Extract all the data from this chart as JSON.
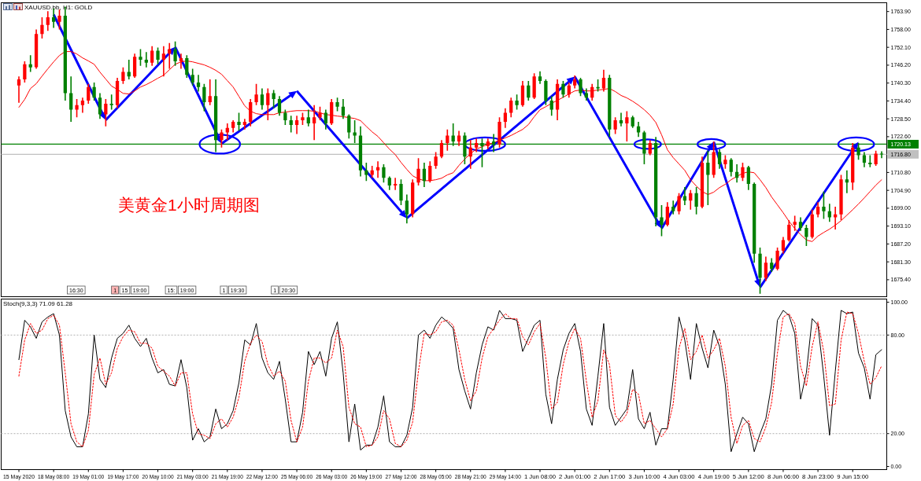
{
  "chart_data": [
    {
      "type": "candlestick",
      "title": "XAUUSD.bb, H1: GOLD",
      "annotations": [
        "美黄金1小时周期图",
        "16:30",
        "1",
        "15",
        "19:00",
        "15:",
        "19:00",
        "1",
        "19:30",
        "1",
        "20:30"
      ],
      "categories": [
        null,
        null,
        null,
        null,
        null,
        null,
        null,
        null,
        null,
        null,
        null,
        null,
        null,
        null,
        null,
        null,
        null,
        null,
        null,
        null,
        null,
        null,
        null,
        null,
        null,
        null,
        null,
        null,
        null,
        null,
        null,
        null,
        null,
        null,
        null,
        null,
        null,
        null,
        null,
        null,
        null,
        null,
        null,
        null,
        null,
        null,
        null,
        null,
        null,
        null,
        null,
        null,
        null,
        null,
        null,
        null,
        null,
        null,
        null,
        null,
        null,
        null,
        null,
        null,
        null,
        null,
        null,
        null,
        null,
        null,
        null,
        null,
        null,
        null,
        null,
        null,
        null,
        null,
        null,
        null,
        null,
        null,
        null,
        null,
        null,
        null,
        null,
        null,
        null,
        null,
        null,
        null,
        null,
        null,
        null,
        null,
        null,
        null,
        null,
        null,
        null,
        null,
        null,
        null,
        null,
        null,
        null,
        null,
        null,
        null,
        null,
        null,
        null,
        null,
        null,
        null,
        null,
        null,
        null,
        null,
        null,
        null,
        null,
        null,
        null,
        null,
        null,
        null,
        null,
        null,
        null,
        null,
        null,
        null,
        null,
        null,
        null,
        null,
        null,
        null,
        null,
        null,
        null,
        null,
        null,
        null,
        null,
        null,
        null,
        null
      ],
      "ohlc": [
        [
          1739.5,
          1742.5,
          1733.8,
          1741.5
        ],
        [
          1741.5,
          1747.5,
          1740.5,
          1746.5
        ],
        [
          1746.5,
          1749.5,
          1744,
          1745.5
        ],
        [
          1745.5,
          1758,
          1745,
          1756.5
        ],
        [
          1756.5,
          1762,
          1755,
          1759.5
        ],
        [
          1759.5,
          1764,
          1757.5,
          1762
        ],
        [
          1762,
          1764.9,
          1758.5,
          1760.5
        ],
        [
          1760.5,
          1764.5,
          1758,
          1762.5
        ],
        [
          1762.5,
          1765.5,
          1734.5,
          1737
        ],
        [
          1737,
          1742.5,
          1727.5,
          1731.5
        ],
        [
          1731.5,
          1735,
          1729,
          1733
        ],
        [
          1733,
          1735.5,
          1730.5,
          1734.5
        ],
        [
          1734.5,
          1740,
          1733.5,
          1739
        ],
        [
          1739,
          1740.5,
          1734.5,
          1735.5
        ],
        [
          1735.5,
          1737,
          1728.5,
          1730
        ],
        [
          1730,
          1735,
          1726,
          1733.5
        ],
        [
          1733.5,
          1736.5,
          1731.5,
          1733
        ],
        [
          1733,
          1742,
          1732,
          1741
        ],
        [
          1741,
          1745.5,
          1740,
          1744
        ],
        [
          1744,
          1748,
          1741.5,
          1742.5
        ],
        [
          1742.5,
          1750,
          1742,
          1749
        ],
        [
          1749,
          1751.5,
          1746,
          1748
        ],
        [
          1748,
          1750.5,
          1745.5,
          1747
        ],
        [
          1747,
          1752.5,
          1746,
          1751
        ],
        [
          1751,
          1752,
          1746.5,
          1748
        ],
        [
          1748,
          1752.5,
          1742.5,
          1750
        ],
        [
          1750,
          1753.5,
          1745,
          1751.5
        ],
        [
          1751.5,
          1754,
          1746,
          1747.5
        ],
        [
          1747.5,
          1750,
          1745,
          1748.5
        ],
        [
          1748.5,
          1749.5,
          1742,
          1743
        ],
        [
          1743,
          1745,
          1739.5,
          1740.5
        ],
        [
          1740.5,
          1743,
          1737.5,
          1739
        ],
        [
          1739,
          1740,
          1731,
          1734
        ],
        [
          1734,
          1741.5,
          1733,
          1736
        ],
        [
          1736,
          1741.5,
          1717.5,
          1721.5
        ],
        [
          1721.5,
          1725,
          1719,
          1724
        ],
        [
          1724,
          1727,
          1721.5,
          1725.5
        ],
        [
          1725.5,
          1728,
          1724,
          1727.5
        ],
        [
          1727.5,
          1730.5,
          1724.5,
          1726.5
        ],
        [
          1726.5,
          1728.5,
          1725,
          1727.5
        ],
        [
          1727.5,
          1735,
          1726,
          1734
        ],
        [
          1734,
          1740,
          1733,
          1736.5
        ],
        [
          1736.5,
          1738.5,
          1731.5,
          1733
        ],
        [
          1733,
          1738.5,
          1728,
          1737
        ],
        [
          1737,
          1738,
          1732,
          1735
        ],
        [
          1735,
          1736,
          1729.5,
          1730.5
        ],
        [
          1730.5,
          1731.5,
          1726.5,
          1728
        ],
        [
          1728,
          1729.5,
          1724,
          1726.5
        ],
        [
          1726.5,
          1729.5,
          1723.5,
          1728
        ],
        [
          1728,
          1730.5,
          1726.5,
          1729
        ],
        [
          1729,
          1731.5,
          1726,
          1727
        ],
        [
          1727,
          1733,
          1721.5,
          1729
        ],
        [
          1729,
          1732.5,
          1728,
          1730.5
        ],
        [
          1730.5,
          1731.5,
          1725,
          1727
        ],
        [
          1727,
          1735,
          1726.5,
          1734
        ],
        [
          1734,
          1735.5,
          1731,
          1732.5
        ],
        [
          1732.5,
          1735,
          1728.5,
          1729.5
        ],
        [
          1729.5,
          1730,
          1722,
          1724
        ],
        [
          1724,
          1728,
          1720.5,
          1723
        ],
        [
          1723,
          1726,
          1709.5,
          1711.5
        ],
        [
          1711.5,
          1714,
          1708,
          1710
        ],
        [
          1710,
          1713,
          1709,
          1711.5
        ],
        [
          1711.5,
          1714.5,
          1709,
          1712.5
        ],
        [
          1712.5,
          1713.5,
          1707.5,
          1709
        ],
        [
          1709,
          1709.5,
          1705,
          1706.5
        ],
        [
          1706.5,
          1709,
          1705,
          1707
        ],
        [
          1707,
          1708.5,
          1700,
          1701.5
        ],
        [
          1701.5,
          1703.5,
          1694,
          1697
        ],
        [
          1697,
          1708.5,
          1696,
          1707.5
        ],
        [
          1707.5,
          1715.5,
          1706.5,
          1712
        ],
        [
          1712,
          1714,
          1706,
          1708
        ],
        [
          1708,
          1714.5,
          1707.5,
          1713
        ],
        [
          1713,
          1717.5,
          1712,
          1716
        ],
        [
          1716,
          1721.5,
          1715.5,
          1720.5
        ],
        [
          1720.5,
          1725,
          1718,
          1723
        ],
        [
          1723,
          1727,
          1719.5,
          1721
        ],
        [
          1721,
          1724.5,
          1719.5,
          1723
        ],
        [
          1723,
          1724,
          1713.5,
          1716
        ],
        [
          1716,
          1721.5,
          1712,
          1719
        ],
        [
          1719,
          1722,
          1717.5,
          1720.5
        ],
        [
          1720.5,
          1722,
          1712.5,
          1719.5
        ],
        [
          1719.5,
          1722,
          1718.5,
          1721
        ],
        [
          1721,
          1723.5,
          1717.5,
          1720
        ],
        [
          1720,
          1729,
          1719,
          1727.5
        ],
        [
          1727.5,
          1732,
          1725.5,
          1730.5
        ],
        [
          1730.5,
          1735.5,
          1729,
          1734.5
        ],
        [
          1734.5,
          1736.5,
          1731.5,
          1733
        ],
        [
          1733,
          1741,
          1732.5,
          1739.5
        ],
        [
          1739.5,
          1741,
          1734.5,
          1735.5
        ],
        [
          1735.5,
          1743.5,
          1735,
          1742.5
        ],
        [
          1742.5,
          1744.2,
          1740,
          1741
        ],
        [
          1741,
          1741.5,
          1733,
          1734.5
        ],
        [
          1734.5,
          1736,
          1729.5,
          1731.5
        ],
        [
          1731.5,
          1741.5,
          1728,
          1740
        ],
        [
          1740,
          1741,
          1735.5,
          1736.5
        ],
        [
          1736.5,
          1740.5,
          1735.5,
          1739.5
        ],
        [
          1739.5,
          1742.8,
          1738.5,
          1741.5
        ],
        [
          1741.5,
          1742,
          1736,
          1737
        ],
        [
          1737,
          1738.5,
          1734.5,
          1735.5
        ],
        [
          1735.5,
          1740,
          1734.5,
          1739
        ],
        [
          1739,
          1741.5,
          1737.5,
          1738.5
        ],
        [
          1738.5,
          1744.7,
          1737.5,
          1742
        ],
        [
          1742,
          1743,
          1722.5,
          1725
        ],
        [
          1725,
          1729,
          1723.5,
          1728
        ],
        [
          1728,
          1730.5,
          1726,
          1727
        ],
        [
          1727,
          1731,
          1721,
          1729
        ],
        [
          1729,
          1729.5,
          1725.5,
          1726
        ],
        [
          1726,
          1727.5,
          1722.5,
          1724
        ],
        [
          1724,
          1724.5,
          1713.5,
          1717
        ],
        [
          1717,
          1721.5,
          1716.5,
          1720.5
        ],
        [
          1720.5,
          1722.5,
          1693,
          1696
        ],
        [
          1696,
          1700,
          1689.8,
          1693.5
        ],
        [
          1693.5,
          1701,
          1693,
          1699.5
        ],
        [
          1699.5,
          1701.5,
          1697,
          1698
        ],
        [
          1698,
          1704,
          1697,
          1703
        ],
        [
          1703,
          1706,
          1700,
          1701.5
        ],
        [
          1701.5,
          1705,
          1698.5,
          1704
        ],
        [
          1704,
          1706,
          1697,
          1699.5
        ],
        [
          1699.5,
          1716,
          1699,
          1714
        ],
        [
          1714,
          1718,
          1700,
          1710
        ],
        [
          1710,
          1721,
          1709,
          1717.5
        ],
        [
          1717.5,
          1718.5,
          1712,
          1713.5
        ],
        [
          1713.5,
          1716.5,
          1712,
          1715
        ],
        [
          1715,
          1715.5,
          1709.5,
          1711
        ],
        [
          1711,
          1713.5,
          1707.5,
          1709
        ],
        [
          1709,
          1714,
          1708,
          1712.5
        ],
        [
          1712.5,
          1713,
          1705,
          1707
        ],
        [
          1707,
          1707.5,
          1681,
          1684
        ],
        [
          1684,
          1686,
          1670.8,
          1676
        ],
        [
          1676,
          1683,
          1675,
          1681
        ],
        [
          1681,
          1682.5,
          1678,
          1679
        ],
        [
          1679,
          1686,
          1678.5,
          1685
        ],
        [
          1685,
          1689.5,
          1684,
          1688.5
        ],
        [
          1688.5,
          1695,
          1688,
          1693.5
        ],
        [
          1693.5,
          1696.5,
          1691.5,
          1694.5
        ],
        [
          1694.5,
          1696,
          1691.5,
          1692.5
        ],
        [
          1692.5,
          1693.5,
          1686.5,
          1689.5
        ],
        [
          1689.5,
          1698.5,
          1689,
          1697
        ],
        [
          1697,
          1701,
          1696,
          1699.5
        ],
        [
          1699.5,
          1704.5,
          1695.5,
          1698
        ],
        [
          1698,
          1700.5,
          1694.5,
          1696
        ],
        [
          1696,
          1699.5,
          1692,
          1697
        ],
        [
          1697,
          1710,
          1695,
          1708.5
        ],
        [
          1708.5,
          1711.5,
          1704,
          1707.5
        ],
        [
          1707.5,
          1720.5,
          1705,
          1719
        ],
        [
          1719,
          1720.5,
          1715,
          1716.5
        ],
        [
          1716.5,
          1717.5,
          1712.5,
          1714
        ],
        [
          1714,
          1716.5,
          1712.5,
          1713.5
        ],
        [
          1713.5,
          1718,
          1713,
          1717
        ],
        [
          1717,
          1717.8,
          1715.5,
          1716.8
        ]
      ],
      "colors": [
        "#ff0000",
        "#ff0000",
        "#008000",
        "#ff0000",
        "#ff0000",
        "#ff0000",
        "#008000",
        "#ff0000",
        "#008000",
        "#008000",
        "#ff0000",
        "#ff0000",
        "#ff0000",
        "#008000",
        "#008000",
        "#ff0000",
        "#008000",
        "#ff0000",
        "#ff0000",
        "#008000",
        "#ff0000",
        "#008000",
        "#008000",
        "#ff0000",
        "#008000",
        "#ff0000",
        "#ff0000",
        "#008000",
        "#ff0000",
        "#008000",
        "#008000",
        "#008000",
        "#008000",
        "#ff0000",
        "#008000",
        "#ff0000",
        "#ff0000",
        "#ff0000",
        "#008000",
        "#ff0000",
        "#ff0000",
        "#ff0000",
        "#008000",
        "#ff0000",
        "#008000",
        "#008000",
        "#008000",
        "#008000",
        "#ff0000",
        "#ff0000",
        "#008000",
        "#ff0000",
        "#ff0000",
        "#008000",
        "#ff0000",
        "#008000",
        "#008000",
        "#008000",
        "#008000",
        "#008000",
        "#008000",
        "#ff0000",
        "#ff0000",
        "#008000",
        "#008000",
        "#ff0000",
        "#008000",
        "#008000",
        "#ff0000",
        "#ff0000",
        "#008000",
        "#ff0000",
        "#ff0000",
        "#ff0000",
        "#ff0000",
        "#008000",
        "#ff0000",
        "#008000",
        "#ff0000",
        "#ff0000",
        "#008000",
        "#ff0000",
        "#008000",
        "#ff0000",
        "#ff0000",
        "#ff0000",
        "#008000",
        "#ff0000",
        "#008000",
        "#ff0000",
        "#008000",
        "#008000",
        "#008000",
        "#ff0000",
        "#008000",
        "#ff0000",
        "#ff0000",
        "#008000",
        "#008000",
        "#ff0000",
        "#008000",
        "#ff0000",
        "#008000",
        "#ff0000",
        "#008000",
        "#ff0000",
        "#008000",
        "#008000",
        "#008000",
        "#ff0000",
        "#008000",
        "#008000",
        "#ff0000",
        "#008000",
        "#ff0000",
        "#008000",
        "#ff0000",
        "#008000",
        "#ff0000",
        "#008000",
        "#ff0000",
        "#008000",
        "#ff0000",
        "#008000",
        "#008000",
        "#ff0000",
        "#008000",
        "#008000",
        "#008000",
        "#ff0000",
        "#008000",
        "#ff0000",
        "#ff0000",
        "#ff0000",
        "#ff0000",
        "#008000",
        "#008000",
        "#ff0000",
        "#ff0000",
        "#008000",
        "#008000",
        "#ff0000",
        "#ff0000",
        "#008000",
        "#ff0000",
        "#008000",
        "#008000",
        "#008000",
        "#ff0000",
        "#008000"
      ],
      "series": [
        {
          "type": "line",
          "color": "#ff0000",
          "values": [
            1732.3,
            1734.9,
            1738.5,
            1740.1,
            1742.6,
            1745.0,
            1747.3,
            1749.4,
            1750.7,
            1750.7,
            1749.9,
            1748.6,
            1747.6,
            1746.5,
            1743.9,
            1741.6,
            1739.3,
            1738.2,
            1736.9,
            1736.7,
            1737.7,
            1739.0,
            1739.8,
            1740.8,
            1741.9,
            1742.9,
            1744.7,
            1746.5,
            1747.3,
            1747.6,
            1747.3,
            1746.8,
            1746.3,
            1745.5,
            1744.5,
            1743.2,
            1741.1,
            1739.0,
            1735.9,
            1732.8,
            1731.0,
            1730.2,
            1729.9,
            1729.9,
            1729.9,
            1730.5,
            1730.7,
            1731.0,
            1731.2,
            1731.2,
            1731.2,
            1731.0,
            1730.5,
            1729.9,
            1729.7,
            1729.4,
            1729.2,
            1728.9,
            1728.6,
            1727.9,
            1726.0,
            1724.2,
            1722.7,
            1720.6,
            1718.5,
            1716.7,
            1714.1,
            1711.8,
            1709.7,
            1708.7,
            1708.1,
            1708.1,
            1708.4,
            1708.9,
            1710.0,
            1710.7,
            1713.1,
            1715.2,
            1717.0,
            1718.5,
            1719.3,
            1720.1,
            1720.6,
            1721.4,
            1722.2,
            1723.0,
            1724.0,
            1725.0,
            1726.6,
            1729.2,
            1731.5,
            1732.5,
            1733.6,
            1734.6,
            1735.6,
            1736.7,
            1737.7,
            1738.0,
            1737.7,
            1737.7,
            1738.0,
            1738.2,
            1738.5,
            1737.5,
            1736.2,
            1735.4,
            1734.3,
            1733.0,
            1731.5,
            1729.7,
            1727.3,
            1723.2,
            1718.3,
            1715.7,
            1713.6,
            1711.5,
            1708.4,
            1706.3,
            1704.5,
            1703.5,
            1704.3,
            1705.8,
            1706.9,
            1708.4,
            1709.5,
            1710.5,
            1711.0,
            1710.7,
            1708.4,
            1705.8,
            1702.7,
            1700.1,
            1697.5,
            1694.7,
            1692.3,
            1690.3,
            1688.5,
            1688.0,
            1689.8,
            1691.0,
            1692.1,
            1693.4,
            1694.9,
            1696.7,
            1698.5,
            1700.4,
            1702.4,
            1704.5,
            1706.6,
            1708.4
          ]
        }
      ],
      "ylim": [
        1669.8,
        1766.8
      ],
      "yticks": [
        {
          "value": 1763.9,
          "label": "1763.90"
        },
        {
          "value": 1758.0,
          "label": "1758.00"
        },
        {
          "value": 1752.1,
          "label": "1752.10"
        },
        {
          "value": 1746.2,
          "label": "1746.20"
        },
        {
          "value": 1740.3,
          "label": "1740.30"
        },
        {
          "value": 1734.4,
          "label": "1734.40"
        },
        {
          "value": 1728.5,
          "label": "1728.50"
        },
        {
          "value": 1722.6,
          "label": "1722.60"
        },
        {
          "value": 1710.8,
          "label": "1710.80"
        },
        {
          "value": 1704.9,
          "label": "1704.90"
        },
        {
          "value": 1699.0,
          "label": "1699.00"
        },
        {
          "value": 1693.1,
          "label": "1693.10"
        },
        {
          "value": 1687.2,
          "label": "1687.20"
        },
        {
          "value": 1681.3,
          "label": "1681.30"
        },
        {
          "value": 1675.4,
          "label": "1675.40"
        }
      ],
      "ref_lines": [
        {
          "axis": "y",
          "value": 1720.13,
          "label": "1720.13",
          "color": "#008000"
        },
        {
          "axis": "y",
          "value": 1716.8,
          "label": "1716.80",
          "color": "#c0c0c0"
        }
      ],
      "tick_labels": "y"
    },
    {
      "type": "line",
      "title": "Stoch(9,3,3) 71.09 61.28",
      "categories": [
        "15 May 2020",
        null,
        null,
        null,
        null,
        null,
        "18 May 08:00",
        null,
        null,
        null,
        null,
        null,
        "19 May 01:00",
        null,
        null,
        null,
        null,
        null,
        "19 May 17:00",
        null,
        null,
        null,
        null,
        null,
        "20 May 10:00",
        null,
        null,
        null,
        null,
        null,
        "21 May 03:00",
        null,
        null,
        null,
        null,
        null,
        "21 May 19:00",
        null,
        null,
        null,
        null,
        null,
        "22 May 12:00",
        null,
        null,
        null,
        null,
        null,
        "25 May 06:00",
        null,
        null,
        null,
        null,
        null,
        "26 May 03:00",
        null,
        null,
        null,
        null,
        null,
        "26 May 19:00",
        null,
        null,
        null,
        null,
        null,
        "27 May 12:00",
        null,
        null,
        null,
        null,
        null,
        "28 May 05:00",
        null,
        null,
        null,
        null,
        null,
        "28 May 21:00",
        null,
        null,
        null,
        null,
        null,
        "29 May 14:00",
        null,
        null,
        null,
        null,
        null,
        "1 Jun 08:00",
        null,
        null,
        null,
        null,
        null,
        "2 Jun 01:00",
        null,
        null,
        null,
        null,
        null,
        "2 Jun 17:00",
        null,
        null,
        null,
        null,
        null,
        "3 Jun 10:00",
        null,
        null,
        null,
        null,
        null,
        "4 Jun 03:00",
        null,
        null,
        null,
        null,
        null,
        "4 Jun 19:00",
        null,
        null,
        null,
        null,
        null,
        "5 Jun 12:00",
        null,
        null,
        null,
        null,
        null,
        "8 Jun 06:00",
        null,
        null,
        null,
        null,
        null,
        "8 Jun 23:00",
        null,
        null,
        null,
        null,
        null,
        "9 Jun 15:00",
        null,
        null,
        null,
        null,
        null
      ],
      "series": [
        {
          "color": "#000000",
          "values": [
            65,
            89,
            85,
            78,
            88,
            91,
            93,
            80,
            34,
            18,
            12,
            12,
            32,
            80,
            53,
            48,
            66,
            78,
            81,
            86,
            78,
            73,
            78,
            66,
            57,
            59,
            50,
            49,
            65,
            48,
            16,
            23,
            15,
            18,
            35,
            23,
            26,
            34,
            51,
            77,
            74,
            87,
            66,
            57,
            53,
            64,
            41,
            15,
            15,
            33,
            70,
            62,
            70,
            55,
            78,
            88,
            57,
            15,
            38,
            10,
            13,
            13,
            24,
            43,
            15,
            12,
            12,
            19,
            36,
            80,
            83,
            78,
            86,
            91,
            88,
            84,
            59,
            46,
            35,
            57,
            74,
            85,
            83,
            95,
            90,
            90,
            89,
            70,
            78,
            86,
            89,
            44,
            26,
            53,
            71,
            81,
            87,
            70,
            35,
            25,
            55,
            87,
            36,
            25,
            30,
            35,
            59,
            29,
            23,
            33,
            13,
            23,
            23,
            53,
            91,
            77,
            53,
            87,
            72,
            60,
            83,
            73,
            50,
            9,
            20,
            30,
            26,
            9,
            20,
            29,
            50,
            89,
            95,
            92,
            81,
            41,
            57,
            90,
            86,
            55,
            19,
            58,
            95,
            93,
            94,
            69,
            60,
            41,
            68,
            71.09
          ]
        },
        {
          "color": "#ff0000",
          "line_style": "dotted",
          "values": [
            55,
            77,
            87,
            81,
            83,
            90,
            92,
            86,
            57,
            26,
            15,
            12,
            22,
            56,
            66,
            50,
            57,
            72,
            79,
            83,
            82,
            75,
            75,
            72,
            61,
            58,
            55,
            49,
            57,
            57,
            32,
            20,
            19,
            17,
            26,
            29,
            24,
            30,
            42,
            64,
            75,
            80,
            76,
            62,
            55,
            58,
            52,
            28,
            15,
            24,
            52,
            66,
            66,
            63,
            66,
            83,
            73,
            36,
            26,
            24,
            12,
            13,
            18,
            34,
            29,
            14,
            12,
            16,
            27,
            58,
            81,
            80,
            82,
            88,
            89,
            86,
            71,
            53,
            40,
            46,
            66,
            79,
            84,
            89,
            93,
            90,
            90,
            79,
            74,
            82,
            87,
            66,
            35,
            39,
            62,
            76,
            84,
            78,
            52,
            30,
            40,
            71,
            62,
            31,
            27,
            32,
            47,
            44,
            26,
            28,
            23,
            18,
            23,
            38,
            72,
            84,
            65,
            70,
            80,
            66,
            71,
            78,
            61,
            30,
            14,
            25,
            28,
            17,
            15,
            24,
            39,
            69,
            91,
            93,
            87,
            61,
            49,
            73,
            88,
            70,
            37,
            38,
            77,
            94,
            93,
            81,
            64,
            50,
            54,
            61.28
          ]
        }
      ],
      "ylim": [
        -1.9,
        101.9
      ],
      "yticks": [
        {
          "value": 0,
          "label": "0.00"
        },
        {
          "value": 20,
          "label": "20.00"
        },
        {
          "value": 80,
          "label": "80.00"
        },
        {
          "value": 100,
          "label": "100.00"
        }
      ],
      "ref_lines": [
        {
          "axis": "y",
          "value": 80,
          "color": "#c0c0c0",
          "line_style": "dotted"
        },
        {
          "axis": "y",
          "value": 20,
          "color": "#c0c0c0",
          "line_style": "dotted"
        }
      ]
    }
  ]
}
